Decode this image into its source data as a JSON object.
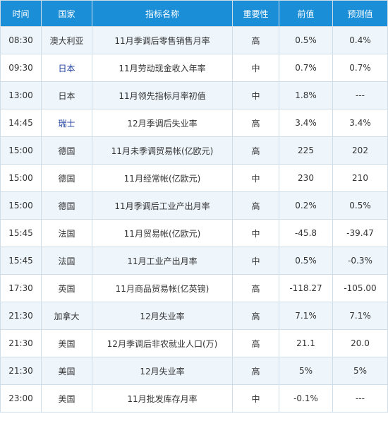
{
  "table": {
    "headers": {
      "time": "时间",
      "country": "国家",
      "indicator": "指标名称",
      "importance": "重要性",
      "previous": "前值",
      "forecast": "预测值"
    },
    "rows": [
      {
        "time": "08:30",
        "country": "澳大利亚",
        "indicator": "11月季调后零售销售月率",
        "importance": "高",
        "previous": "0.5%",
        "forecast": "0.4%"
      },
      {
        "time": "09:30",
        "country": "日本",
        "indicator": "11月劳动现金收入年率",
        "importance": "中",
        "previous": "0.7%",
        "forecast": "0.7%"
      },
      {
        "time": "13:00",
        "country": "日本",
        "indicator": "11月领先指标月率初值",
        "importance": "中",
        "previous": "1.8%",
        "forecast": "---"
      },
      {
        "time": "14:45",
        "country": "瑞士",
        "indicator": "12月季调后失业率",
        "importance": "高",
        "previous": "3.4%",
        "forecast": "3.4%"
      },
      {
        "time": "15:00",
        "country": "德国",
        "indicator": "11月未季调贸易帐(亿欧元)",
        "importance": "高",
        "previous": "225",
        "forecast": "202"
      },
      {
        "time": "15:00",
        "country": "德国",
        "indicator": "11月经常帐(亿欧元)",
        "importance": "中",
        "previous": "230",
        "forecast": "210"
      },
      {
        "time": "15:00",
        "country": "德国",
        "indicator": "11月季调后工业产出月率",
        "importance": "高",
        "previous": "0.2%",
        "forecast": "0.5%"
      },
      {
        "time": "15:45",
        "country": "法国",
        "indicator": "11月贸易帐(亿欧元)",
        "importance": "中",
        "previous": "-45.8",
        "forecast": "-39.47"
      },
      {
        "time": "15:45",
        "country": "法国",
        "indicator": "11月工业产出月率",
        "importance": "中",
        "previous": "0.5%",
        "forecast": "-0.3%"
      },
      {
        "time": "17:30",
        "country": "英国",
        "indicator": "11月商品贸易帐(亿英镑)",
        "importance": "高",
        "previous": "-118.27",
        "forecast": "-105.00"
      },
      {
        "time": "21:30",
        "country": "加拿大",
        "indicator": "12月失业率",
        "importance": "高",
        "previous": "7.1%",
        "forecast": "7.1%"
      },
      {
        "time": "21:30",
        "country": "美国",
        "indicator": "12月季调后非农就业人口(万)",
        "importance": "高",
        "previous": "21.1",
        "forecast": "20.0"
      },
      {
        "time": "21:30",
        "country": "美国",
        "indicator": "12月失业率",
        "importance": "高",
        "previous": "5%",
        "forecast": "5%"
      },
      {
        "time": "23:00",
        "country": "美国",
        "indicator": "11月批发库存月率",
        "importance": "中",
        "previous": "-0.1%",
        "forecast": "---"
      }
    ]
  },
  "colors": {
    "header_bg": "#1a8fd8",
    "row_alt_bg": "#eef6fc",
    "link_text": "#1f3f9f"
  }
}
